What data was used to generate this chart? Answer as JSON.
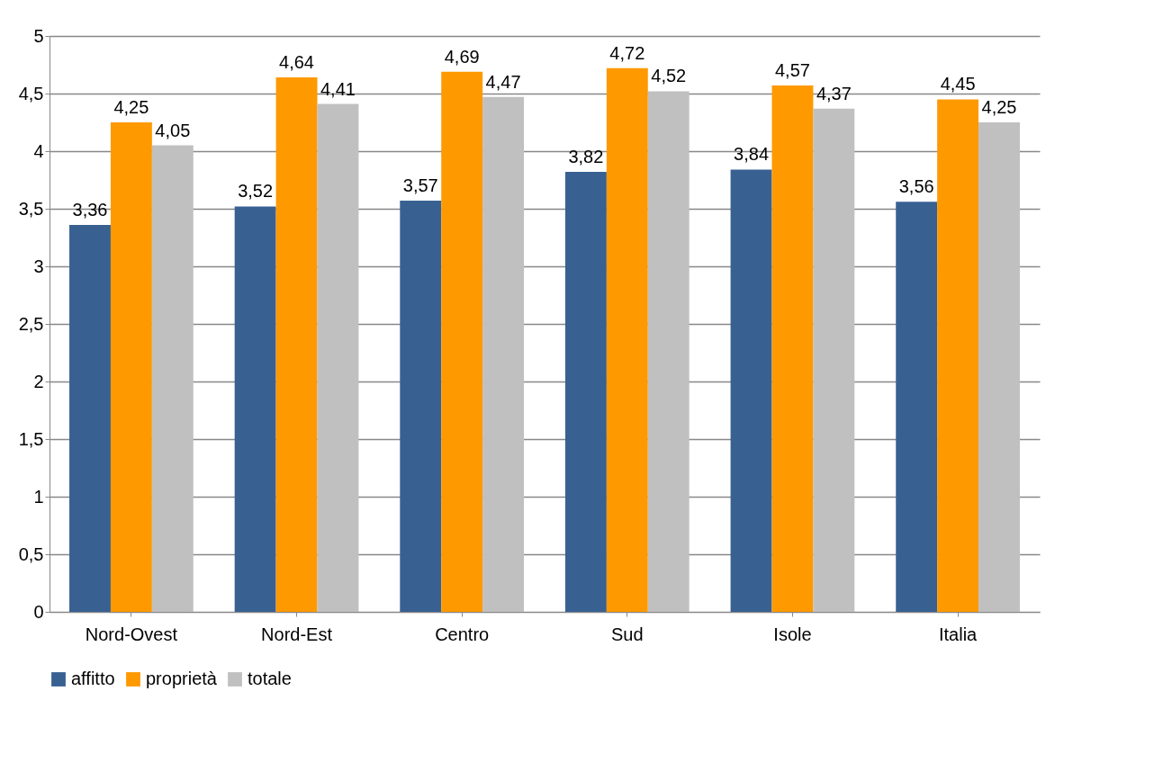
{
  "chart_data": {
    "type": "bar",
    "categories": [
      "Nord-Ovest",
      "Nord-Est",
      "Centro",
      "Sud",
      "Isole",
      "Italia"
    ],
    "series": [
      {
        "name": "affitto",
        "color": "#386192",
        "values": [
          3.36,
          3.52,
          3.57,
          3.82,
          3.84,
          3.56
        ],
        "value_labels": [
          "3,36",
          "3,52",
          "3,57",
          "3,82",
          "3,84",
          "3,56"
        ]
      },
      {
        "name": "proprietà",
        "color": "#ff9900",
        "values": [
          4.25,
          4.64,
          4.69,
          4.72,
          4.57,
          4.45
        ],
        "value_labels": [
          "4,25",
          "4,64",
          "4,69",
          "4,72",
          "4,57",
          "4,45"
        ]
      },
      {
        "name": "totale",
        "color": "#c0c0c0",
        "values": [
          4.05,
          4.41,
          4.47,
          4.52,
          4.37,
          4.25
        ],
        "value_labels": [
          "4,05",
          "4,41",
          "4,47",
          "4,52",
          "4,37",
          "4,25"
        ]
      }
    ],
    "ylim": [
      0,
      5
    ],
    "yticks": [
      0,
      {
        "value": 0.5,
        "label": "0,5"
      },
      1,
      {
        "value": 1.5,
        "label": "1,5"
      },
      2,
      {
        "value": 2.5,
        "label": "2,5"
      },
      3,
      {
        "value": 3.5,
        "label": "3,5"
      },
      4,
      {
        "value": 4.5,
        "label": "4,5"
      },
      5
    ],
    "grid": "y",
    "legend": "bottom"
  }
}
